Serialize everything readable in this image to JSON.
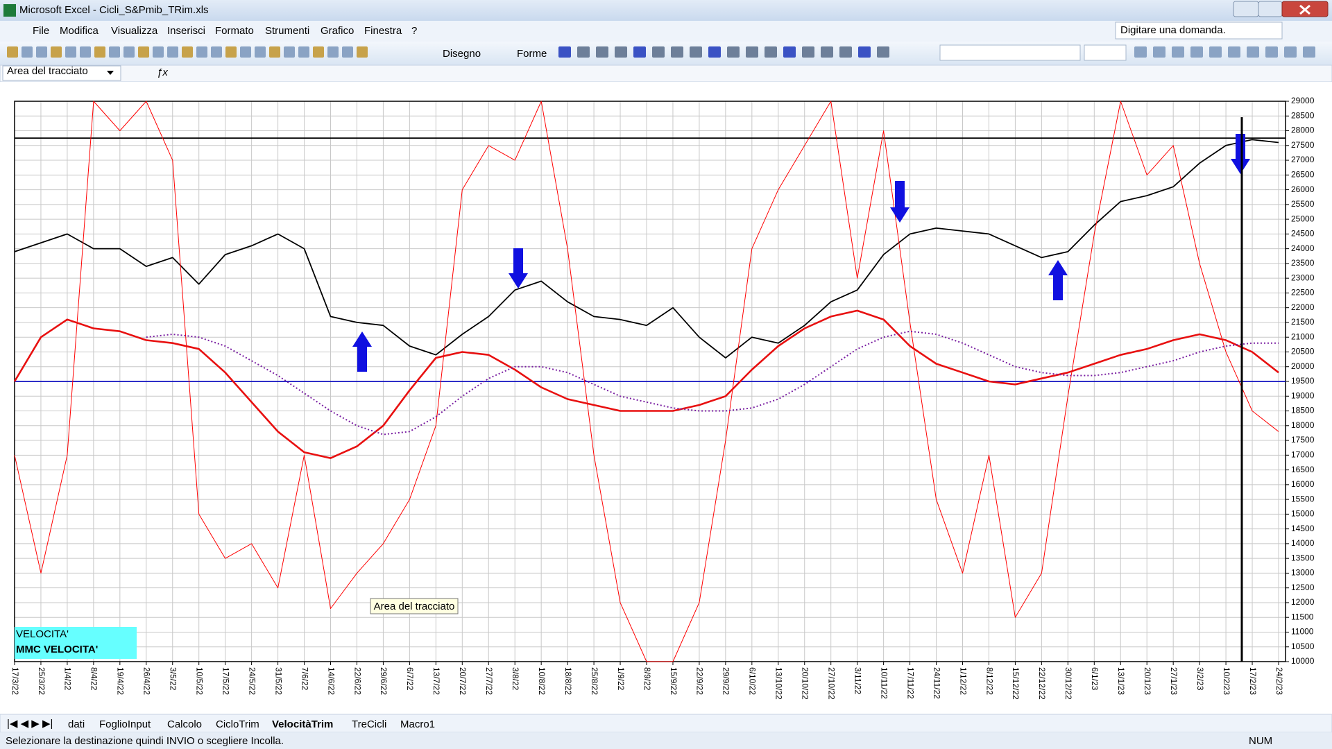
{
  "window": {
    "title": "Microsoft Excel - Cicli_S&Pmib_TRim.xls",
    "menu": [
      "File",
      "Modifica",
      "Visualizza",
      "Inserisci",
      "Formato",
      "Strumenti",
      "Grafico",
      "Finestra",
      "?"
    ],
    "help_box": "Digitare una domanda.",
    "toolbar": [
      "Disegno",
      "Forme"
    ],
    "name_box": "Area del tracciato"
  },
  "chart_data": {
    "type": "line",
    "categories": [
      "17/3/22",
      "25/3/22",
      "1/4/22",
      "8/4/22",
      "19/4/22",
      "26/4/22",
      "3/5/22",
      "10/5/22",
      "17/5/22",
      "24/5/22",
      "31/5/22",
      "7/6/22",
      "14/6/22",
      "22/6/22",
      "29/6/22",
      "6/7/22",
      "13/7/22",
      "20/7/22",
      "27/7/22",
      "3/8/22",
      "10/8/22",
      "18/8/22",
      "25/8/22",
      "1/9/22",
      "8/9/22",
      "15/9/22",
      "22/9/22",
      "29/9/22",
      "6/10/22",
      "13/10/22",
      "20/10/22",
      "27/10/22",
      "3/11/22",
      "10/11/22",
      "17/11/22",
      "24/11/22",
      "1/12/22",
      "8/12/22",
      "15/12/22",
      "22/12/22",
      "30/12/22",
      "6/1/23",
      "13/1/23",
      "20/1/23",
      "27/1/23",
      "3/2/23",
      "10/2/23",
      "17/2/23",
      "24/2/23"
    ],
    "series": [
      {
        "color": "#000000",
        "width": 1.8,
        "values": [
          23900,
          24200,
          24500,
          24000,
          24000,
          23400,
          23700,
          22800,
          23800,
          24100,
          24500,
          24000,
          21700,
          21500,
          21400,
          20700,
          20400,
          21100,
          21700,
          22600,
          22900,
          22200,
          21700,
          21600,
          21400,
          22000,
          21000,
          20300,
          21000,
          20800,
          21400,
          22200,
          22600,
          23800,
          24500,
          24700,
          24600,
          24500,
          24100,
          23700,
          23900,
          24800,
          25600,
          25800,
          26100,
          26900,
          27500,
          27700,
          27600
        ]
      },
      {
        "name": "VELOCITA'",
        "color": "#ff0000",
        "width": 1,
        "values": [
          17000,
          13000,
          17000,
          29000,
          28000,
          29000,
          27000,
          15000,
          13500,
          14000,
          12500,
          17000,
          11800,
          13000,
          14000,
          15500,
          18000,
          26000,
          27500,
          27000,
          29000,
          24000,
          17000,
          12000,
          10000,
          10000,
          12000,
          17500,
          24000,
          26000,
          27500,
          29000,
          23000,
          28000,
          21500,
          15500,
          13000,
          17000,
          11500,
          13000,
          19000,
          24500,
          29000,
          26500,
          27500,
          23500,
          20500,
          18500,
          17800
        ]
      },
      {
        "name": "MMC VELOCITA'",
        "color": "#e81010",
        "width": 2.6,
        "values": [
          19500,
          21000,
          21600,
          21300,
          21200,
          20900,
          20800,
          20600,
          19800,
          18800,
          17800,
          17100,
          16900,
          17300,
          18000,
          19200,
          20300,
          20500,
          20400,
          19900,
          19300,
          18900,
          18700,
          18500,
          18500,
          18500,
          18700,
          19000,
          19900,
          20700,
          21300,
          21700,
          21900,
          21600,
          20700,
          20100,
          19800,
          19500,
          19400,
          19600,
          19800,
          20100,
          20400,
          20600,
          20900,
          21100,
          20900,
          20500,
          19800
        ]
      },
      {
        "color": "#7a1fa2",
        "width": 2,
        "dash": "2 3",
        "values": [
          null,
          null,
          null,
          null,
          null,
          21000,
          21100,
          21000,
          20700,
          20200,
          19700,
          19100,
          18500,
          18000,
          17700,
          17800,
          18300,
          19000,
          19600,
          20000,
          20000,
          19800,
          19400,
          19000,
          18800,
          18600,
          18500,
          18500,
          18600,
          18900,
          19400,
          20000,
          20600,
          21000,
          21200,
          21100,
          20800,
          20400,
          20000,
          19800,
          19700,
          19700,
          19800,
          20000,
          20200,
          20500,
          20700,
          20800,
          20800
        ]
      }
    ],
    "reference_lines": [
      {
        "value": 27750,
        "color": "#000000"
      },
      {
        "value": 19500,
        "color": "#1010c0"
      }
    ],
    "ylim": [
      10000,
      29000
    ],
    "yticks": [
      10000,
      10500,
      11000,
      11500,
      12000,
      12500,
      13000,
      13500,
      14000,
      14500,
      15000,
      15500,
      16000,
      16500,
      17000,
      17500,
      18000,
      18500,
      19000,
      19500,
      20000,
      20500,
      21000,
      21500,
      22000,
      22500,
      23000,
      23500,
      24000,
      24500,
      25000,
      25500,
      26000,
      26500,
      27000,
      27500,
      28000,
      28500,
      29000
    ],
    "grid": true,
    "legend": "lower left",
    "legend_color": "#66ffff"
  },
  "tooltip": "Area del tracciato",
  "sheet_tabs": [
    "dati",
    "FoglioInput",
    "Calcolo",
    "CicloTrim",
    "VelocitàTrim",
    "TreCicli",
    "Macro1"
  ],
  "active_tab": 4,
  "status": {
    "message": "Selezionare la destinazione quindi INVIO o scegliere Incolla.",
    "indicator": "NUM"
  }
}
